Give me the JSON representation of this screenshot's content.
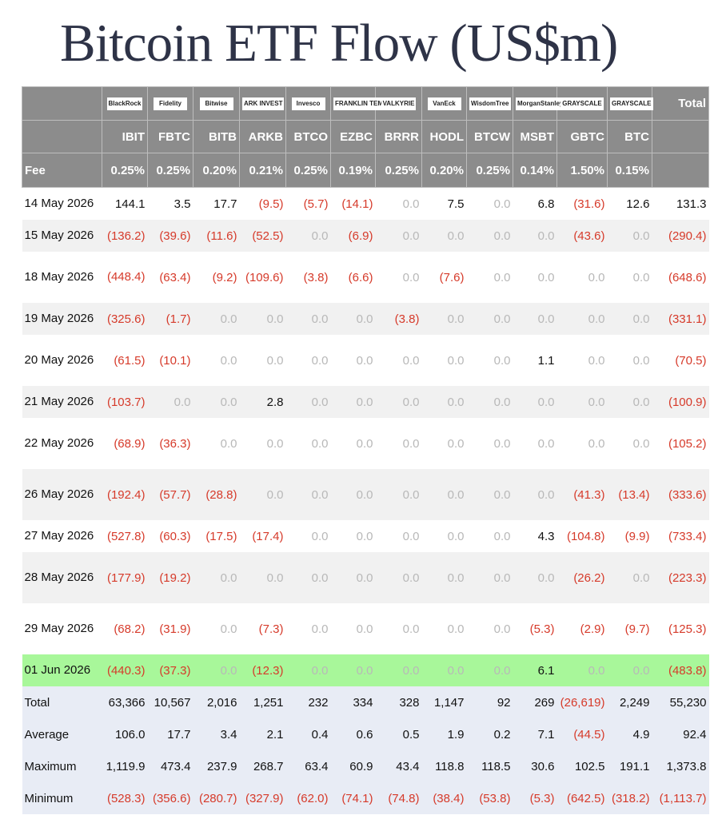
{
  "title": "Bitcoin ETF Flow (US$m)",
  "accent_colors": {
    "header_bg": "#8c8c8c",
    "negative": "#d63a2a",
    "zero": "#b8b8b8",
    "highlight_row": "#a8f79a",
    "stats_bg": "#e8ecf5"
  },
  "header": {
    "total_label": "Total",
    "fee_label": "Fee",
    "issuers": [
      "BlackRock",
      "Fidelity",
      "Bitwise",
      "ARK INVEST",
      "Invesco",
      "FRANKLIN TEMPLETON",
      "VALKYRIE",
      "VanEck",
      "WisdomTree",
      "MorganStanley",
      "GRAYSCALE",
      "GRAYSCALE"
    ],
    "tickers": [
      "IBIT",
      "FBTC",
      "BITB",
      "ARKB",
      "BTCO",
      "EZBC",
      "BRRR",
      "HODL",
      "BTCW",
      "MSBT",
      "GBTC",
      "BTC"
    ],
    "fees": [
      "0.25%",
      "0.25%",
      "0.20%",
      "0.21%",
      "0.25%",
      "0.19%",
      "0.25%",
      "0.20%",
      "0.25%",
      "0.14%",
      "1.50%",
      "0.15%"
    ]
  },
  "rows": [
    {
      "date": "14 May 2026",
      "values": [
        "144.1",
        "3.5",
        "17.7",
        "(9.5)",
        "(5.7)",
        "(14.1)",
        "0.0",
        "7.5",
        "0.0",
        "6.8",
        "(31.6)",
        "12.6"
      ],
      "total": "131.3"
    },
    {
      "date": "15 May 2026",
      "values": [
        "(136.2)",
        "(39.6)",
        "(11.6)",
        "(52.5)",
        "0.0",
        "(6.9)",
        "0.0",
        "0.0",
        "0.0",
        "0.0",
        "(43.6)",
        "0.0"
      ],
      "total": "(290.4)"
    },
    {
      "date": "18 May 2026",
      "values": [
        "(448.4)",
        "(63.4)",
        "(9.2)",
        "(109.6)",
        "(3.8)",
        "(6.6)",
        "0.0",
        "(7.6)",
        "0.0",
        "0.0",
        "0.0",
        "0.0"
      ],
      "total": "(648.6)"
    },
    {
      "date": "19 May 2026",
      "values": [
        "(325.6)",
        "(1.7)",
        "0.0",
        "0.0",
        "0.0",
        "0.0",
        "(3.8)",
        "0.0",
        "0.0",
        "0.0",
        "0.0",
        "0.0"
      ],
      "total": "(331.1)"
    },
    {
      "date": "20 May 2026",
      "values": [
        "(61.5)",
        "(10.1)",
        "0.0",
        "0.0",
        "0.0",
        "0.0",
        "0.0",
        "0.0",
        "0.0",
        "1.1",
        "0.0",
        "0.0"
      ],
      "total": "(70.5)"
    },
    {
      "date": "21 May 2026",
      "values": [
        "(103.7)",
        "0.0",
        "0.0",
        "2.8",
        "0.0",
        "0.0",
        "0.0",
        "0.0",
        "0.0",
        "0.0",
        "0.0",
        "0.0"
      ],
      "total": "(100.9)"
    },
    {
      "date": "22 May 2026",
      "values": [
        "(68.9)",
        "(36.3)",
        "0.0",
        "0.0",
        "0.0",
        "0.0",
        "0.0",
        "0.0",
        "0.0",
        "0.0",
        "0.0",
        "0.0"
      ],
      "total": "(105.2)"
    },
    {
      "date": "26 May 2026",
      "values": [
        "(192.4)",
        "(57.7)",
        "(28.8)",
        "0.0",
        "0.0",
        "0.0",
        "0.0",
        "0.0",
        "0.0",
        "0.0",
        "(41.3)",
        "(13.4)"
      ],
      "total": "(333.6)"
    },
    {
      "date": "27 May 2026",
      "values": [
        "(527.8)",
        "(60.3)",
        "(17.5)",
        "(17.4)",
        "0.0",
        "0.0",
        "0.0",
        "0.0",
        "0.0",
        "4.3",
        "(104.8)",
        "(9.9)"
      ],
      "total": "(733.4)"
    },
    {
      "date": "28 May 2026",
      "values": [
        "(177.9)",
        "(19.2)",
        "0.0",
        "0.0",
        "0.0",
        "0.0",
        "0.0",
        "0.0",
        "0.0",
        "0.0",
        "(26.2)",
        "0.0"
      ],
      "total": "(223.3)"
    },
    {
      "date": "29 May 2026",
      "values": [
        "(68.2)",
        "(31.9)",
        "0.0",
        "(7.3)",
        "0.0",
        "0.0",
        "0.0",
        "0.0",
        "0.0",
        "(5.3)",
        "(2.9)",
        "(9.7)"
      ],
      "total": "(125.3)"
    },
    {
      "date": "01 Jun 2026",
      "values": [
        "(440.3)",
        "(37.3)",
        "0.0",
        "(12.3)",
        "0.0",
        "0.0",
        "0.0",
        "0.0",
        "0.0",
        "6.1",
        "0.0",
        "0.0"
      ],
      "total": "(483.8)"
    }
  ],
  "stats": [
    {
      "label": "Total",
      "values": [
        "63,366",
        "10,567",
        "2,016",
        "1,251",
        "232",
        "334",
        "328",
        "1,147",
        "92",
        "269",
        "(26,619)",
        "2,249"
      ],
      "total": "55,230"
    },
    {
      "label": "Average",
      "values": [
        "106.0",
        "17.7",
        "3.4",
        "2.1",
        "0.4",
        "0.6",
        "0.5",
        "1.9",
        "0.2",
        "7.1",
        "(44.5)",
        "4.9"
      ],
      "total": "92.4"
    },
    {
      "label": "Maximum",
      "values": [
        "1,119.9",
        "473.4",
        "237.9",
        "268.7",
        "63.4",
        "60.9",
        "43.4",
        "118.8",
        "118.5",
        "30.6",
        "102.5",
        "191.1"
      ],
      "total": "1,373.8"
    },
    {
      "label": "Minimum",
      "values": [
        "(528.3)",
        "(356.6)",
        "(280.7)",
        "(327.9)",
        "(62.0)",
        "(74.1)",
        "(74.8)",
        "(38.4)",
        "(53.8)",
        "(5.3)",
        "(642.5)",
        "(318.2)"
      ],
      "total": "(1,113.7)"
    }
  ]
}
